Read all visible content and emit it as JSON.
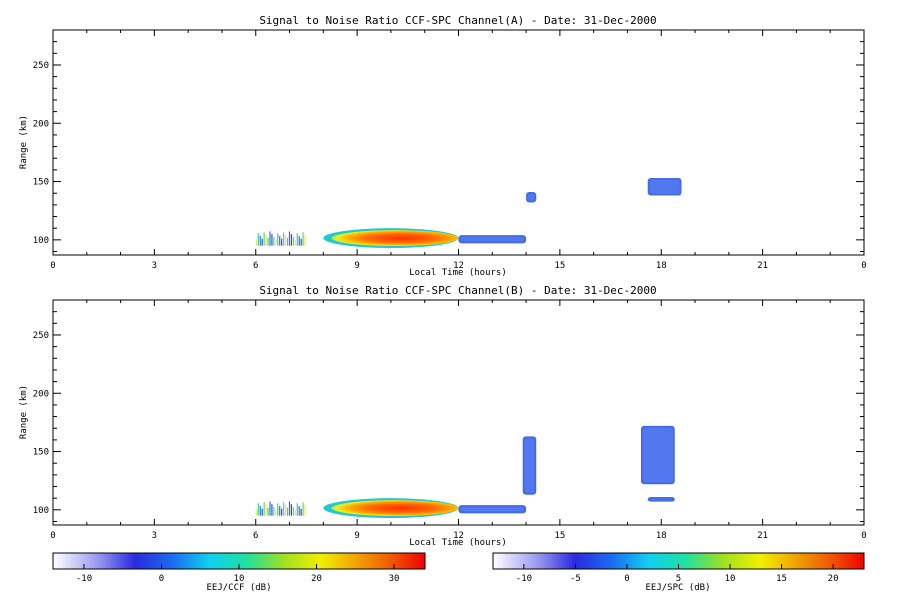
{
  "chart_data": [
    {
      "type": "heatmap",
      "title": "Signal to Noise Ratio CCF-SPC Channel(A) - Date: 31-Dec-2000",
      "xlabel": "Local Time (hours)",
      "ylabel": "Range (km)",
      "xlim": [
        0,
        24
      ],
      "ylim": [
        87,
        280
      ],
      "xticks": [
        "0",
        "3",
        "6",
        "9",
        "12",
        "15",
        "18",
        "21",
        "0"
      ],
      "yticks": [
        "100",
        "150",
        "200",
        "250"
      ],
      "colorbar": "EEJ/CCF (dB)",
      "regions": [
        {
          "x0": 6.0,
          "x1": 7.5,
          "y0": 95,
          "y1": 108,
          "level": "mixed"
        },
        {
          "x0": 8.0,
          "x1": 12.0,
          "y0": 93,
          "y1": 110,
          "level": "high"
        },
        {
          "x0": 12.0,
          "x1": 14.0,
          "y0": 97,
          "y1": 104,
          "level": "low"
        },
        {
          "x0": 14.0,
          "x1": 14.3,
          "y0": 132,
          "y1": 141,
          "level": "low"
        },
        {
          "x0": 17.6,
          "x1": 18.6,
          "y0": 138,
          "y1": 153,
          "level": "low"
        }
      ]
    },
    {
      "type": "heatmap",
      "title": "Signal to Noise Ratio CCF-SPC Channel(B) - Date: 31-Dec-2000",
      "xlabel": "Local Time (hours)",
      "ylabel": "Range (km)",
      "xlim": [
        0,
        24
      ],
      "ylim": [
        87,
        280
      ],
      "xticks": [
        "0",
        "3",
        "6",
        "9",
        "12",
        "15",
        "18",
        "21",
        "0"
      ],
      "yticks": [
        "100",
        "150",
        "200",
        "250"
      ],
      "colorbar": "EEJ/SPC (dB)",
      "regions": [
        {
          "x0": 6.0,
          "x1": 7.5,
          "y0": 95,
          "y1": 108,
          "level": "mixed"
        },
        {
          "x0": 8.0,
          "x1": 12.0,
          "y0": 93,
          "y1": 110,
          "level": "high"
        },
        {
          "x0": 12.0,
          "x1": 14.0,
          "y0": 97,
          "y1": 104,
          "level": "low"
        },
        {
          "x0": 13.9,
          "x1": 14.3,
          "y0": 113,
          "y1": 163,
          "level": "low"
        },
        {
          "x0": 17.4,
          "x1": 18.4,
          "y0": 122,
          "y1": 172,
          "level": "low"
        },
        {
          "x0": 17.6,
          "x1": 18.4,
          "y0": 107,
          "y1": 111,
          "level": "low"
        }
      ]
    }
  ],
  "colorbars": [
    {
      "label": "EEJ/CCF (dB)",
      "ticks": [
        "-10",
        "0",
        "10",
        "20",
        "30"
      ],
      "range": [
        -14,
        34
      ]
    },
    {
      "label": "EEJ/SPC (dB)",
      "ticks": [
        "-10",
        "-5",
        "0",
        "5",
        "10",
        "15",
        "20"
      ],
      "range": [
        -13,
        23
      ]
    }
  ]
}
